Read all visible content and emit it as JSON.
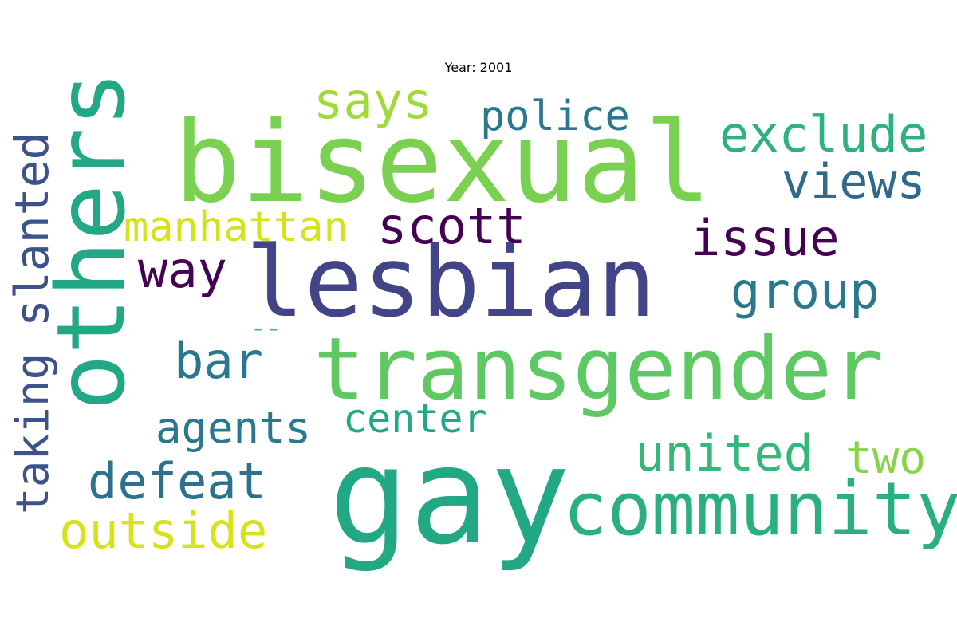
{
  "title": "Year: 2001",
  "words": [
    {
      "text": "bisexual",
      "color": "#7ad151"
    },
    {
      "text": "others",
      "color": "#22a884"
    },
    {
      "text": "lesbian",
      "color": "#414487"
    },
    {
      "text": "transgender",
      "color": "#5ec962"
    },
    {
      "text": "gay",
      "color": "#22a884"
    },
    {
      "text": "community",
      "color": "#2ab07f"
    },
    {
      "text": "slanted",
      "color": "#3b528b"
    },
    {
      "text": "taking",
      "color": "#3b528b"
    },
    {
      "text": "says",
      "color": "#a0da39"
    },
    {
      "text": "police",
      "color": "#2a788e"
    },
    {
      "text": "exclude",
      "color": "#2db27d"
    },
    {
      "text": "views",
      "color": "#31688e"
    },
    {
      "text": "manhattan",
      "color": "#d2e21b"
    },
    {
      "text": "scott",
      "color": "#440154"
    },
    {
      "text": "issue",
      "color": "#440154"
    },
    {
      "text": "way",
      "color": "#440154"
    },
    {
      "text": "group",
      "color": "#2a788e"
    },
    {
      "text": "--",
      "color": "#35b779"
    },
    {
      "text": "bar",
      "color": "#2a788e"
    },
    {
      "text": "agents",
      "color": "#2a788e"
    },
    {
      "text": "center",
      "color": "#22a884"
    },
    {
      "text": "defeat",
      "color": "#2c728e"
    },
    {
      "text": "united",
      "color": "#35b779"
    },
    {
      "text": "two",
      "color": "#86d549"
    },
    {
      "text": "outside",
      "color": "#d8e219"
    }
  ]
}
